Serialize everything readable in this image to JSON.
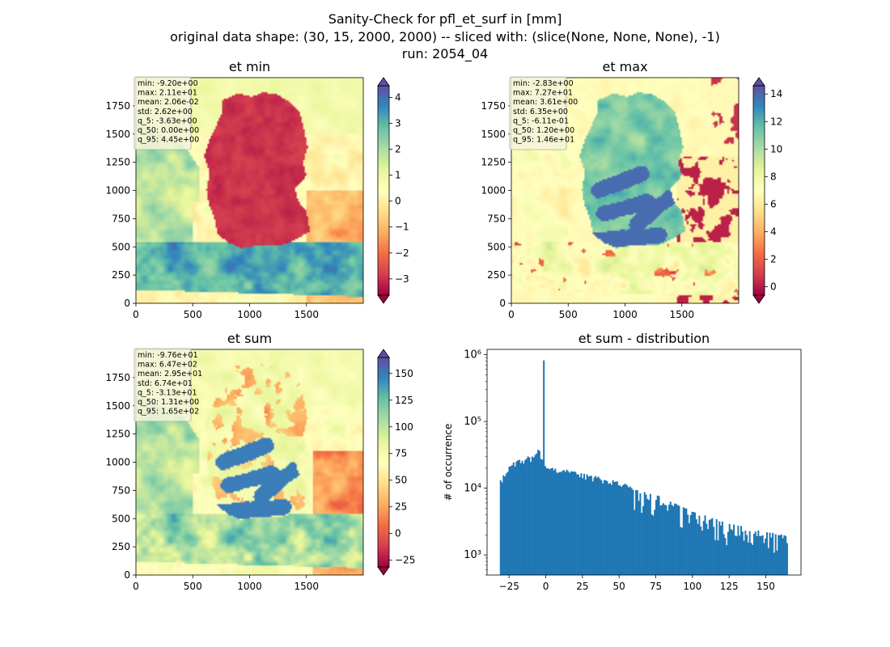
{
  "suptitle": [
    "Sanity-Check for pfl_et_surf in [mm]",
    "original data shape: (30, 15, 2000, 2000) -- sliced with: (slice(None, None, None), -1)",
    "run: 2054_04"
  ],
  "chart_data": [
    {
      "type": "heatmap",
      "title": "et min",
      "x_ticks": [
        0,
        500,
        1000,
        1500
      ],
      "y_ticks": [
        0,
        250,
        500,
        750,
        1000,
        1250,
        1500,
        1750
      ],
      "xlim": [
        0,
        2000
      ],
      "ylim": [
        0,
        2000
      ],
      "colorbar": {
        "cmap": "Spectral",
        "range": [
          -3.63,
          4.45
        ],
        "extend": "both",
        "ticks": [
          -3,
          -2,
          -1,
          0,
          1,
          2,
          3,
          4
        ]
      },
      "stats": [
        "min: -9.20e+00",
        "max: 2.11e+01",
        "mean: 2.06e-02",
        "std: 2.62e+00",
        "q_5: -3.63e+00",
        "q_50: 0.00e+00",
        "q_95: 4.45e+00"
      ]
    },
    {
      "type": "heatmap",
      "title": "et max",
      "x_ticks": [
        0,
        500,
        1000,
        1500
      ],
      "y_ticks": [
        0,
        250,
        500,
        750,
        1000,
        1250,
        1500,
        1750
      ],
      "xlim": [
        0,
        2000
      ],
      "ylim": [
        0,
        2000
      ],
      "colorbar": {
        "cmap": "Spectral",
        "range": [
          -0.611,
          14.6
        ],
        "extend": "both",
        "ticks": [
          0,
          2,
          4,
          6,
          8,
          10,
          12,
          14
        ]
      },
      "stats": [
        "min: -2.83e+00",
        "max: 7.27e+01",
        "mean: 3.61e+00",
        "std: 6.35e+00",
        "q_5: -6.11e-01",
        "q_50: 1.20e+00",
        "q_95: 1.46e+01"
      ]
    },
    {
      "type": "heatmap",
      "title": "et sum",
      "x_ticks": [
        0,
        500,
        1000,
        1500
      ],
      "y_ticks": [
        0,
        250,
        500,
        750,
        1000,
        1250,
        1500,
        1750
      ],
      "xlim": [
        0,
        2000
      ],
      "ylim": [
        0,
        2000
      ],
      "colorbar": {
        "cmap": "Spectral",
        "range": [
          -31.3,
          165
        ],
        "extend": "both",
        "ticks": [
          -25,
          0,
          25,
          50,
          75,
          100,
          125,
          150
        ]
      },
      "stats": [
        "min: -9.76e+01",
        "max: 6.47e+02",
        "mean: 2.95e+01",
        "std: 6.74e+01",
        "q_5: -3.13e+01",
        "q_50: 1.31e+00",
        "q_95: 1.65e+02"
      ]
    },
    {
      "type": "bar",
      "title": "et sum - distribution",
      "xlabel": "",
      "ylabel": "# of occurrence",
      "yscale": "log",
      "xlim": [
        -40,
        174
      ],
      "ylim": [
        500,
        1200000
      ],
      "x_ticks": [
        -25,
        0,
        25,
        50,
        75,
        100,
        125,
        150
      ],
      "y_ticks": [
        {
          "value": 1000,
          "label": "10³"
        },
        {
          "value": 10000,
          "label": "10⁴"
        },
        {
          "value": 100000,
          "label": "10⁵"
        },
        {
          "value": 1000000,
          "label": "10⁶"
        }
      ],
      "color": "#1f77b4",
      "bins": {
        "start": -31.3,
        "end": 165,
        "count": 200
      },
      "envelope": [
        {
          "x": -31.3,
          "y": 13000
        },
        {
          "x": -25,
          "y": 22000
        },
        {
          "x": -20,
          "y": 26000
        },
        {
          "x": -15,
          "y": 28500
        },
        {
          "x": -10,
          "y": 31000
        },
        {
          "x": -5,
          "y": 40000
        },
        {
          "x": -2,
          "y": 30000
        },
        {
          "x": 0,
          "y": 22000
        },
        {
          "x": 10,
          "y": 20000
        },
        {
          "x": 25,
          "y": 17000
        },
        {
          "x": 50,
          "y": 12500
        },
        {
          "x": 75,
          "y": 8000
        },
        {
          "x": 100,
          "y": 4500
        },
        {
          "x": 125,
          "y": 3000
        },
        {
          "x": 150,
          "y": 2200
        },
        {
          "x": 165,
          "y": 2000
        }
      ],
      "spikes": [
        {
          "x": -1.2,
          "y": 820000
        }
      ]
    }
  ]
}
